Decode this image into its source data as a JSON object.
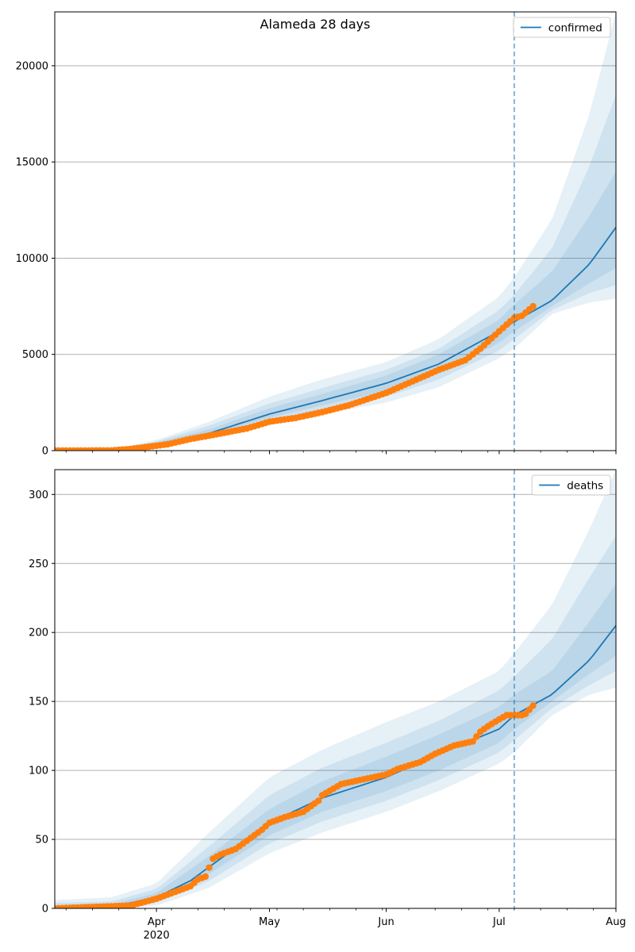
{
  "title": "Alameda 28 days",
  "colors": {
    "model": "#1f77b4",
    "observed": "#ff7f0e",
    "band": "#1f77b4",
    "forecast_line": "#1f77b4",
    "grid": "#b0b0b0"
  },
  "x_axis": {
    "start": "2020-03-05",
    "end": "2020-08-01",
    "forecast_start": "2020-07-05",
    "last_observed": "2020-07-10",
    "ticks": [
      {
        "date": "2020-04-01",
        "label": "Apr",
        "sublabel": "2020"
      },
      {
        "date": "2020-05-01",
        "label": "May",
        "sublabel": ""
      },
      {
        "date": "2020-06-01",
        "label": "Jun",
        "sublabel": ""
      },
      {
        "date": "2020-07-01",
        "label": "Jul",
        "sublabel": ""
      },
      {
        "date": "2020-08-01",
        "label": "Aug",
        "sublabel": ""
      }
    ]
  },
  "chart_data": [
    {
      "type": "line",
      "series_name": "confirmed",
      "legend": {
        "label": "confirmed",
        "placement": "top-right"
      },
      "ylim": [
        0,
        22800
      ],
      "yticks": [
        0,
        5000,
        10000,
        15000,
        20000
      ],
      "grid": "horizontal",
      "model_median": [
        [
          "2020-03-05",
          0
        ],
        [
          "2020-03-20",
          30
        ],
        [
          "2020-03-28",
          180
        ],
        [
          "2020-04-04",
          380
        ],
        [
          "2020-04-15",
          900
        ],
        [
          "2020-05-01",
          1900
        ],
        [
          "2020-05-15",
          2600
        ],
        [
          "2020-06-01",
          3500
        ],
        [
          "2020-06-15",
          4500
        ],
        [
          "2020-07-01",
          6200
        ],
        [
          "2020-07-05",
          6700
        ],
        [
          "2020-07-15",
          7800
        ],
        [
          "2020-07-25",
          9700
        ],
        [
          "2020-08-01",
          11600
        ]
      ],
      "bands": [
        {
          "dates": [
            "2020-03-05",
            "2020-03-20",
            "2020-04-01",
            "2020-04-15",
            "2020-05-01",
            "2020-05-15",
            "2020-06-01",
            "2020-06-15",
            "2020-07-01",
            "2020-07-05",
            "2020-07-15",
            "2020-07-25",
            "2020-08-01"
          ],
          "lower": [
            0,
            10,
            200,
            600,
            1400,
            1900,
            2500,
            3300,
            4800,
            5300,
            7100,
            7700,
            7900
          ],
          "upper": [
            0,
            60,
            550,
            1500,
            2800,
            3700,
            4600,
            5800,
            8000,
            9000,
            12000,
            17500,
            22800
          ]
        },
        {
          "dates": [
            "2020-03-05",
            "2020-03-20",
            "2020-04-01",
            "2020-04-15",
            "2020-05-01",
            "2020-05-15",
            "2020-06-01",
            "2020-06-15",
            "2020-07-01",
            "2020-07-05",
            "2020-07-15",
            "2020-07-25",
            "2020-08-01"
          ],
          "lower": [
            0,
            15,
            240,
            700,
            1550,
            2100,
            2800,
            3700,
            5200,
            5800,
            7300,
            8200,
            8600
          ],
          "upper": [
            0,
            50,
            480,
            1300,
            2450,
            3250,
            4200,
            5300,
            7300,
            8100,
            10500,
            14800,
            18500
          ]
        },
        {
          "dates": [
            "2020-03-05",
            "2020-03-20",
            "2020-04-01",
            "2020-04-15",
            "2020-05-01",
            "2020-05-15",
            "2020-06-01",
            "2020-06-15",
            "2020-07-01",
            "2020-07-05",
            "2020-07-15",
            "2020-07-25",
            "2020-08-01"
          ],
          "lower": [
            0,
            20,
            270,
            780,
            1700,
            2350,
            3100,
            4000,
            5600,
            6200,
            7500,
            8700,
            9500
          ],
          "upper": [
            0,
            40,
            420,
            1100,
            2200,
            2950,
            3900,
            5000,
            6800,
            7600,
            9300,
            12200,
            14500
          ]
        }
      ],
      "observed": [
        [
          "2020-03-05",
          0
        ],
        [
          "2020-03-20",
          10
        ],
        [
          "2020-03-25",
          80
        ],
        [
          "2020-03-30",
          200
        ],
        [
          "2020-04-04",
          330
        ],
        [
          "2020-04-10",
          600
        ],
        [
          "2020-04-17",
          850
        ],
        [
          "2020-04-25",
          1150
        ],
        [
          "2020-05-01",
          1500
        ],
        [
          "2020-05-08",
          1700
        ],
        [
          "2020-05-15",
          2000
        ],
        [
          "2020-05-22",
          2350
        ],
        [
          "2020-06-01",
          3000
        ],
        [
          "2020-06-08",
          3600
        ],
        [
          "2020-06-15",
          4200
        ],
        [
          "2020-06-22",
          4700
        ],
        [
          "2020-06-26",
          5300
        ],
        [
          "2020-07-01",
          6200
        ],
        [
          "2020-07-05",
          6900
        ],
        [
          "2020-07-07",
          7000
        ],
        [
          "2020-07-10",
          7500
        ]
      ]
    },
    {
      "type": "line",
      "series_name": "deaths",
      "legend": {
        "label": "deaths",
        "placement": "top-right"
      },
      "ylim": [
        0,
        318
      ],
      "yticks": [
        0,
        50,
        100,
        150,
        200,
        250,
        300
      ],
      "grid": "horizontal",
      "model_median": [
        [
          "2020-03-05",
          0
        ],
        [
          "2020-03-20",
          1
        ],
        [
          "2020-04-01",
          8
        ],
        [
          "2020-04-10",
          20
        ],
        [
          "2020-04-20",
          40
        ],
        [
          "2020-05-01",
          62
        ],
        [
          "2020-05-15",
          80
        ],
        [
          "2020-06-01",
          95
        ],
        [
          "2020-06-15",
          112
        ],
        [
          "2020-07-01",
          130
        ],
        [
          "2020-07-05",
          140
        ],
        [
          "2020-07-15",
          155
        ],
        [
          "2020-07-25",
          180
        ],
        [
          "2020-08-01",
          205
        ]
      ],
      "bands": [
        {
          "dates": [
            "2020-03-05",
            "2020-03-20",
            "2020-04-01",
            "2020-04-15",
            "2020-05-01",
            "2020-05-15",
            "2020-06-01",
            "2020-06-15",
            "2020-07-01",
            "2020-07-05",
            "2020-07-15",
            "2020-07-25",
            "2020-08-01"
          ],
          "lower": [
            0,
            0,
            2,
            15,
            40,
            55,
            70,
            85,
            105,
            113,
            140,
            155,
            160
          ],
          "upper": [
            6,
            8,
            18,
            55,
            95,
            115,
            135,
            150,
            172,
            185,
            220,
            275,
            318
          ]
        },
        {
          "dates": [
            "2020-03-05",
            "2020-03-20",
            "2020-04-01",
            "2020-04-15",
            "2020-05-01",
            "2020-05-15",
            "2020-06-01",
            "2020-06-15",
            "2020-07-01",
            "2020-07-05",
            "2020-07-15",
            "2020-07-25",
            "2020-08-01"
          ],
          "lower": [
            0,
            0,
            4,
            20,
            47,
            63,
            78,
            93,
            113,
            122,
            145,
            162,
            172
          ],
          "upper": [
            4,
            5,
            14,
            45,
            82,
            102,
            120,
            136,
            158,
            168,
            195,
            240,
            270
          ]
        },
        {
          "dates": [
            "2020-03-05",
            "2020-03-20",
            "2020-04-01",
            "2020-04-15",
            "2020-05-01",
            "2020-05-15",
            "2020-06-01",
            "2020-06-15",
            "2020-07-01",
            "2020-07-05",
            "2020-07-15",
            "2020-07-25",
            "2020-08-01"
          ],
          "lower": [
            0,
            0,
            5,
            25,
            53,
            70,
            85,
            100,
            120,
            130,
            150,
            170,
            183
          ],
          "upper": [
            2,
            3,
            11,
            38,
            72,
            92,
            110,
            126,
            146,
            155,
            172,
            208,
            235
          ]
        }
      ],
      "observed": [
        [
          "2020-03-05",
          0
        ],
        [
          "2020-03-25",
          2
        ],
        [
          "2020-03-28",
          4
        ],
        [
          "2020-04-01",
          7
        ],
        [
          "2020-04-05",
          11
        ],
        [
          "2020-04-10",
          16
        ],
        [
          "2020-04-12",
          21
        ],
        [
          "2020-04-14",
          23
        ],
        [
          "2020-04-16",
          36
        ],
        [
          "2020-04-18",
          39
        ],
        [
          "2020-04-22",
          43
        ],
        [
          "2020-04-26",
          51
        ],
        [
          "2020-04-29",
          57
        ],
        [
          "2020-05-01",
          62
        ],
        [
          "2020-05-05",
          66
        ],
        [
          "2020-05-10",
          70
        ],
        [
          "2020-05-14",
          78
        ],
        [
          "2020-05-15",
          82
        ],
        [
          "2020-05-20",
          90
        ],
        [
          "2020-05-25",
          93
        ],
        [
          "2020-06-01",
          97
        ],
        [
          "2020-06-04",
          101
        ],
        [
          "2020-06-10",
          106
        ],
        [
          "2020-06-14",
          112
        ],
        [
          "2020-06-19",
          118
        ],
        [
          "2020-06-24",
          121
        ],
        [
          "2020-06-26",
          128
        ],
        [
          "2020-06-28",
          132
        ],
        [
          "2020-07-01",
          137
        ],
        [
          "2020-07-03",
          140
        ],
        [
          "2020-07-07",
          140
        ],
        [
          "2020-07-08",
          141
        ],
        [
          "2020-07-10",
          147
        ]
      ]
    }
  ]
}
